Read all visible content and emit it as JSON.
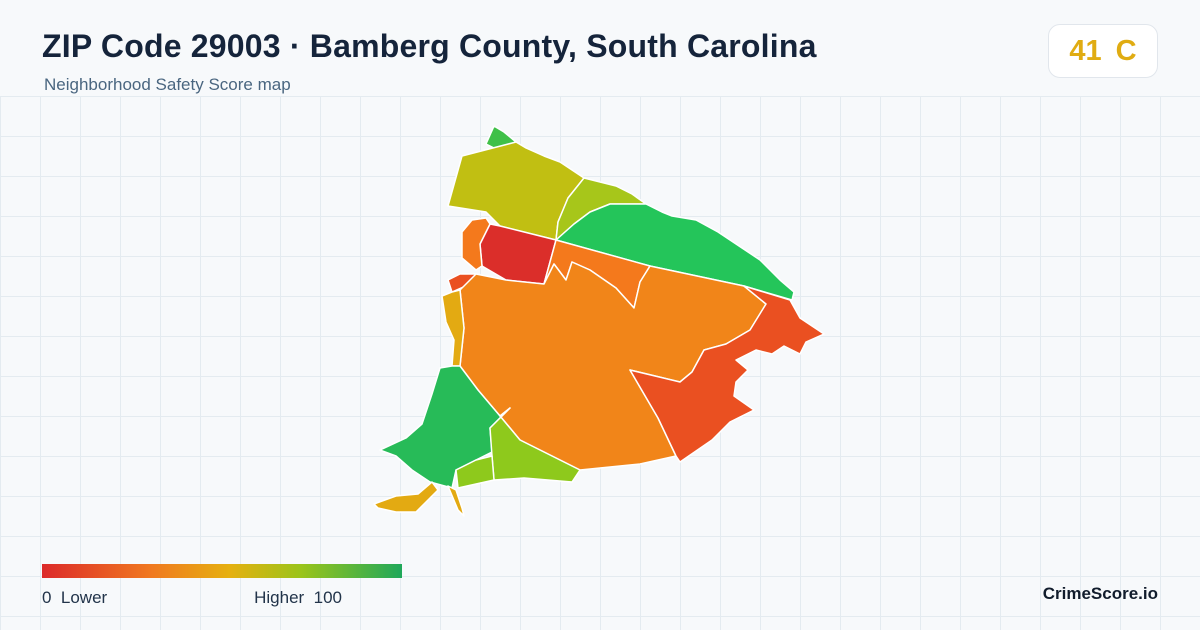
{
  "header": {
    "title": "ZIP Code 29003 · Bamberg County, South Carolina",
    "subtitle": "Neighborhood Safety Score map"
  },
  "score": {
    "value": "41",
    "grade": "C",
    "color": "#e0ac12"
  },
  "map": {
    "colors": {
      "red": "#db2e2a",
      "red_orange": "#ea5021",
      "orange": "#f18519",
      "orange2": "#f4791c",
      "amber": "#e3aa12",
      "yellow_green": "#c1bf12",
      "lime": "#a7c61a",
      "light_green": "#8ec91c",
      "green": "#24c55a",
      "green2": "#27bb58",
      "green3": "#3fc048"
    }
  },
  "legend": {
    "min_label": "0  Lower",
    "max_label": "Higher  100",
    "gradient": [
      "#dc2a2a",
      "#f07820",
      "#e6b010",
      "#9ac41a",
      "#1fa85a"
    ]
  },
  "brand": "CrimeScore.io"
}
